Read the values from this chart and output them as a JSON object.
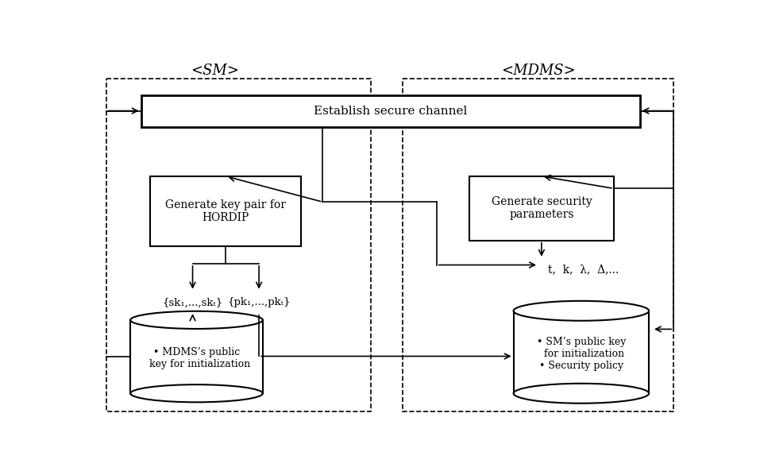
{
  "title_sm": "<SM>",
  "title_mdms": "<MDMS>",
  "bg_color": "#ffffff",
  "sk_label": "{sk₁,...,skₜ}",
  "pk_label": "{pk₁,...,pkₜ}",
  "params_label": "t,  k,  λ,  Δ,...",
  "establish_label": "Establish secure channel",
  "keygen_label": "Generate key pair for\nHORDIP",
  "security_label": "Generate security\nparameters",
  "db_sm_text": "• MDMS’s public\n  key for initialization",
  "db_mdms_text": "• SM’s public key\n  for initialization\n• Security policy"
}
